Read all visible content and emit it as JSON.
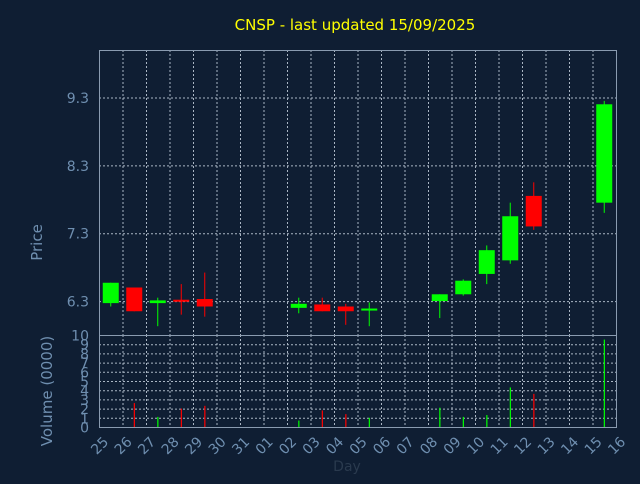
{
  "title": "CNSP - last updated 15/09/2025",
  "colors": {
    "background": "#0f1e33",
    "title": "#ffff00",
    "axis_text": "#6f8fb0",
    "frame": "#8a9bb0",
    "grid": "#aab6c4",
    "up": "#00ff00",
    "down": "#ff0000"
  },
  "chart_data": [
    {
      "type": "candlestick",
      "ylabel": "Price",
      "ylim": [
        5.8,
        10.0
      ],
      "yticks": [
        "6.3",
        "7.3",
        "8.3",
        "9.3"
      ],
      "x_day_labels": [
        "25",
        "26",
        "27",
        "28",
        "29",
        "30",
        "31",
        "01",
        "02",
        "03",
        "04",
        "05",
        "06",
        "07",
        "08",
        "09",
        "10",
        "11",
        "12",
        "13",
        "14",
        "15",
        "16"
      ],
      "candles": [
        {
          "day": "25",
          "open": 6.27,
          "high": 6.57,
          "low": 6.22,
          "close": 6.57
        },
        {
          "day": "26",
          "open": 6.5,
          "high": 6.5,
          "low": 6.15,
          "close": 6.15
        },
        {
          "day": "27",
          "open": 6.27,
          "high": 6.35,
          "low": 5.93,
          "close": 6.31
        },
        {
          "day": "28",
          "open": 6.32,
          "high": 6.55,
          "low": 6.1,
          "close": 6.29
        },
        {
          "day": "29",
          "open": 6.33,
          "high": 6.72,
          "low": 6.07,
          "close": 6.22
        },
        {
          "day": "02",
          "open": 6.2,
          "high": 6.35,
          "low": 6.12,
          "close": 6.26
        },
        {
          "day": "03",
          "open": 6.25,
          "high": 6.35,
          "low": 6.15,
          "close": 6.15
        },
        {
          "day": "04",
          "open": 6.22,
          "high": 6.26,
          "low": 5.95,
          "close": 6.15
        },
        {
          "day": "05",
          "open": 6.16,
          "high": 6.28,
          "low": 5.93,
          "close": 6.19
        },
        {
          "day": "08",
          "open": 6.3,
          "high": 6.4,
          "low": 6.05,
          "close": 6.4
        },
        {
          "day": "09",
          "open": 6.4,
          "high": 6.62,
          "low": 6.38,
          "close": 6.6
        },
        {
          "day": "10",
          "open": 6.7,
          "high": 7.12,
          "low": 6.55,
          "close": 7.05
        },
        {
          "day": "11",
          "open": 6.9,
          "high": 7.75,
          "low": 6.85,
          "close": 7.55
        },
        {
          "day": "12",
          "open": 7.85,
          "high": 8.05,
          "low": 7.35,
          "close": 7.4
        },
        {
          "day": "15",
          "open": 7.75,
          "high": 9.25,
          "low": 7.6,
          "close": 9.2
        }
      ]
    },
    {
      "type": "bar",
      "xlabel": "Day",
      "ylabel": "Volume (0000)",
      "ylim": [
        0,
        10
      ],
      "yticks": [
        "0",
        "1",
        "2",
        "3",
        "4",
        "5",
        "6",
        "7",
        "8",
        "9",
        "10"
      ],
      "volumes": [
        {
          "day": "26",
          "value": 2.6,
          "direction": "down"
        },
        {
          "day": "27",
          "value": 1.1,
          "direction": "up"
        },
        {
          "day": "28",
          "value": 2.0,
          "direction": "down"
        },
        {
          "day": "29",
          "value": 2.3,
          "direction": "down"
        },
        {
          "day": "02",
          "value": 0.7,
          "direction": "up"
        },
        {
          "day": "03",
          "value": 1.8,
          "direction": "down"
        },
        {
          "day": "04",
          "value": 1.4,
          "direction": "down"
        },
        {
          "day": "05",
          "value": 1.0,
          "direction": "up"
        },
        {
          "day": "08",
          "value": 2.1,
          "direction": "up"
        },
        {
          "day": "09",
          "value": 1.1,
          "direction": "up"
        },
        {
          "day": "10",
          "value": 1.3,
          "direction": "up"
        },
        {
          "day": "11",
          "value": 4.3,
          "direction": "up"
        },
        {
          "day": "12",
          "value": 3.6,
          "direction": "down"
        },
        {
          "day": "15",
          "value": 9.5,
          "direction": "up"
        }
      ]
    }
  ]
}
